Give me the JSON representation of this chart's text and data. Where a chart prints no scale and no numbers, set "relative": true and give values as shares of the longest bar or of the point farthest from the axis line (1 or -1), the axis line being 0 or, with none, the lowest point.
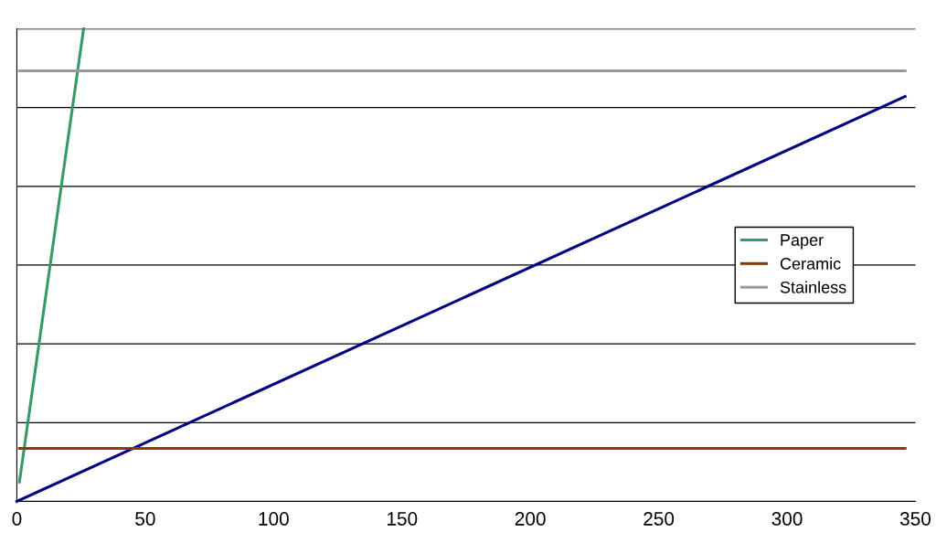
{
  "chart_data": {
    "type": "line",
    "relative": true,
    "xlim": [
      0,
      350
    ],
    "xticks": [
      0,
      50,
      100,
      150,
      200,
      250,
      300,
      350
    ],
    "series": [
      {
        "color": "#000080",
        "x": [
          0,
          346
        ],
        "values": [
          0,
          0.857
        ]
      },
      {
        "name": "Paper",
        "color": "#339966",
        "x": [
          1,
          26
        ],
        "values": [
          0.041,
          1
        ]
      },
      {
        "name": "Ceramic",
        "color": "#993300",
        "x": [
          1,
          346
        ],
        "values": [
          0.112,
          0.112
        ]
      },
      {
        "name": "Stainless",
        "color": "#999999",
        "x": [
          1,
          346
        ],
        "values": [
          0.911,
          0.911
        ]
      }
    ],
    "grid": "y",
    "legend": "right",
    "tick_labels": "x",
    "marker": "none",
    "line_style": "solid"
  }
}
